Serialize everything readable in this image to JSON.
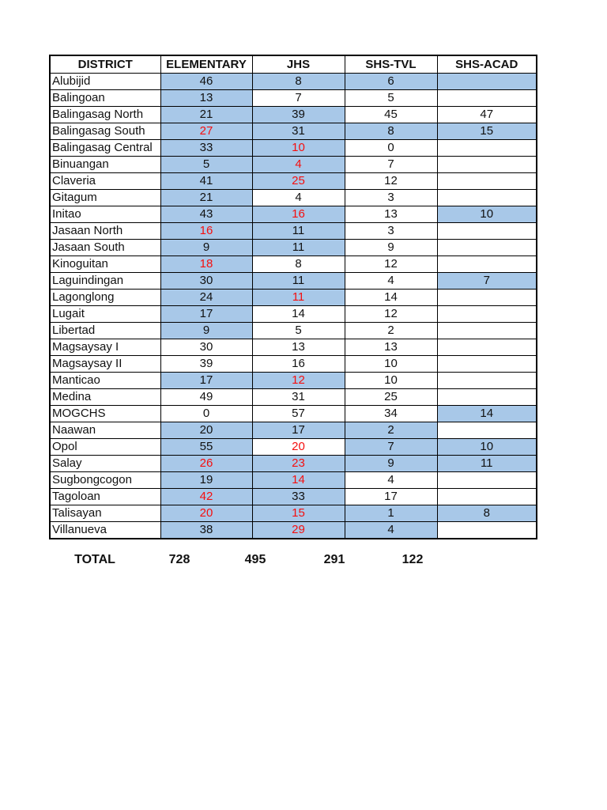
{
  "page": {
    "background": "#ffffff"
  },
  "colors": {
    "highlight_blue": "#A8C8E8",
    "alert_red": "#F50F0F",
    "border_black": "#000000"
  },
  "table": {
    "columns": [
      "DISTRICT",
      "ELEMENTARY",
      "JHS",
      "SHS-TVL",
      "SHS-ACAD"
    ],
    "rows": [
      {
        "district": "Alubijid",
        "values": [
          {
            "v": "46",
            "hl": true,
            "red": false
          },
          {
            "v": "8",
            "hl": true,
            "red": false
          },
          {
            "v": "6",
            "hl": true,
            "red": false
          },
          {
            "v": "",
            "hl": true,
            "red": false
          }
        ]
      },
      {
        "district": "Balingoan",
        "values": [
          {
            "v": "13",
            "hl": true,
            "red": false
          },
          {
            "v": "7",
            "hl": false,
            "red": false
          },
          {
            "v": "5",
            "hl": false,
            "red": false
          },
          {
            "v": "",
            "hl": false,
            "red": false
          }
        ]
      },
      {
        "district": "Balingasag North",
        "values": [
          {
            "v": "21",
            "hl": true,
            "red": false
          },
          {
            "v": "39",
            "hl": true,
            "red": false
          },
          {
            "v": "45",
            "hl": false,
            "red": false
          },
          {
            "v": "47",
            "hl": false,
            "red": false
          }
        ]
      },
      {
        "district": "Balingasag South",
        "values": [
          {
            "v": "27",
            "hl": true,
            "red": true
          },
          {
            "v": "31",
            "hl": true,
            "red": false
          },
          {
            "v": "8",
            "hl": true,
            "red": false
          },
          {
            "v": "15",
            "hl": true,
            "red": false
          }
        ]
      },
      {
        "district": "Balingasag Central",
        "values": [
          {
            "v": "33",
            "hl": true,
            "red": false
          },
          {
            "v": "10",
            "hl": true,
            "red": true
          },
          {
            "v": "0",
            "hl": false,
            "red": false
          },
          {
            "v": "",
            "hl": false,
            "red": false
          }
        ]
      },
      {
        "district": "Binuangan",
        "values": [
          {
            "v": "5",
            "hl": true,
            "red": false
          },
          {
            "v": "4",
            "hl": true,
            "red": true
          },
          {
            "v": "7",
            "hl": false,
            "red": false
          },
          {
            "v": "",
            "hl": false,
            "red": false
          }
        ]
      },
      {
        "district": "Claveria",
        "values": [
          {
            "v": "41",
            "hl": true,
            "red": false
          },
          {
            "v": "25",
            "hl": true,
            "red": true
          },
          {
            "v": "12",
            "hl": false,
            "red": false
          },
          {
            "v": "",
            "hl": false,
            "red": false
          }
        ]
      },
      {
        "district": "Gitagum",
        "values": [
          {
            "v": "21",
            "hl": true,
            "red": false
          },
          {
            "v": "4",
            "hl": false,
            "red": false
          },
          {
            "v": "3",
            "hl": false,
            "red": false
          },
          {
            "v": "",
            "hl": false,
            "red": false
          }
        ]
      },
      {
        "district": "Initao",
        "values": [
          {
            "v": "43",
            "hl": true,
            "red": false
          },
          {
            "v": "16",
            "hl": true,
            "red": true
          },
          {
            "v": "13",
            "hl": false,
            "red": false
          },
          {
            "v": "10",
            "hl": true,
            "red": false
          }
        ]
      },
      {
        "district": "Jasaan North",
        "values": [
          {
            "v": "16",
            "hl": true,
            "red": true
          },
          {
            "v": "11",
            "hl": true,
            "red": false
          },
          {
            "v": "3",
            "hl": false,
            "red": false
          },
          {
            "v": "",
            "hl": false,
            "red": false
          }
        ]
      },
      {
        "district": "Jasaan South",
        "values": [
          {
            "v": "9",
            "hl": true,
            "red": false
          },
          {
            "v": "11",
            "hl": true,
            "red": false
          },
          {
            "v": "9",
            "hl": false,
            "red": false
          },
          {
            "v": "",
            "hl": false,
            "red": false
          }
        ]
      },
      {
        "district": "Kinoguitan",
        "values": [
          {
            "v": "18",
            "hl": true,
            "red": true
          },
          {
            "v": "8",
            "hl": false,
            "red": false
          },
          {
            "v": "12",
            "hl": false,
            "red": false
          },
          {
            "v": "",
            "hl": false,
            "red": false
          }
        ]
      },
      {
        "district": "Laguindingan",
        "values": [
          {
            "v": "30",
            "hl": true,
            "red": false
          },
          {
            "v": "11",
            "hl": true,
            "red": false
          },
          {
            "v": "4",
            "hl": false,
            "red": false
          },
          {
            "v": "7",
            "hl": true,
            "red": false
          }
        ]
      },
      {
        "district": "Lagonglong",
        "values": [
          {
            "v": "24",
            "hl": true,
            "red": false
          },
          {
            "v": "11",
            "hl": true,
            "red": true
          },
          {
            "v": "14",
            "hl": false,
            "red": false
          },
          {
            "v": "",
            "hl": false,
            "red": false
          }
        ]
      },
      {
        "district": "Lugait",
        "values": [
          {
            "v": "17",
            "hl": true,
            "red": false
          },
          {
            "v": "14",
            "hl": false,
            "red": false
          },
          {
            "v": "12",
            "hl": false,
            "red": false
          },
          {
            "v": "",
            "hl": false,
            "red": false
          }
        ]
      },
      {
        "district": "Libertad",
        "values": [
          {
            "v": "9",
            "hl": true,
            "red": false
          },
          {
            "v": "5",
            "hl": false,
            "red": false
          },
          {
            "v": "2",
            "hl": false,
            "red": false
          },
          {
            "v": "",
            "hl": false,
            "red": false
          }
        ]
      },
      {
        "district": "Magsaysay I",
        "values": [
          {
            "v": "30",
            "hl": false,
            "red": false
          },
          {
            "v": "13",
            "hl": false,
            "red": false
          },
          {
            "v": "13",
            "hl": false,
            "red": false
          },
          {
            "v": "",
            "hl": false,
            "red": false
          }
        ]
      },
      {
        "district": "Magsaysay II",
        "values": [
          {
            "v": "39",
            "hl": false,
            "red": false
          },
          {
            "v": "16",
            "hl": false,
            "red": false
          },
          {
            "v": "10",
            "hl": false,
            "red": false
          },
          {
            "v": "",
            "hl": false,
            "red": false
          }
        ]
      },
      {
        "district": "Manticao",
        "values": [
          {
            "v": "17",
            "hl": true,
            "red": false
          },
          {
            "v": "12",
            "hl": true,
            "red": true
          },
          {
            "v": "10",
            "hl": false,
            "red": false
          },
          {
            "v": "",
            "hl": false,
            "red": false
          }
        ]
      },
      {
        "district": "Medina",
        "values": [
          {
            "v": "49",
            "hl": false,
            "red": false
          },
          {
            "v": "31",
            "hl": false,
            "red": false
          },
          {
            "v": "25",
            "hl": false,
            "red": false
          },
          {
            "v": "",
            "hl": false,
            "red": false
          }
        ]
      },
      {
        "district": "MOGCHS",
        "values": [
          {
            "v": "0",
            "hl": false,
            "red": false
          },
          {
            "v": "57",
            "hl": false,
            "red": false
          },
          {
            "v": "34",
            "hl": false,
            "red": false
          },
          {
            "v": "14",
            "hl": true,
            "red": false
          }
        ]
      },
      {
        "district": "Naawan",
        "values": [
          {
            "v": "20",
            "hl": true,
            "red": false
          },
          {
            "v": "17",
            "hl": true,
            "red": false
          },
          {
            "v": "2",
            "hl": true,
            "red": false
          },
          {
            "v": "",
            "hl": false,
            "red": false
          }
        ]
      },
      {
        "district": "Opol",
        "values": [
          {
            "v": "55",
            "hl": true,
            "red": false
          },
          {
            "v": "20",
            "hl": false,
            "red": true
          },
          {
            "v": "7",
            "hl": true,
            "red": false
          },
          {
            "v": "10",
            "hl": true,
            "red": false
          }
        ]
      },
      {
        "district": "Salay",
        "values": [
          {
            "v": "26",
            "hl": true,
            "red": true
          },
          {
            "v": "23",
            "hl": true,
            "red": true
          },
          {
            "v": "9",
            "hl": true,
            "red": false
          },
          {
            "v": "11",
            "hl": true,
            "red": false
          }
        ]
      },
      {
        "district": "Sugbongcogon",
        "values": [
          {
            "v": "19",
            "hl": true,
            "red": false
          },
          {
            "v": "14",
            "hl": true,
            "red": true
          },
          {
            "v": "4",
            "hl": false,
            "red": false
          },
          {
            "v": "",
            "hl": false,
            "red": false
          }
        ]
      },
      {
        "district": "Tagoloan",
        "values": [
          {
            "v": "42",
            "hl": true,
            "red": true
          },
          {
            "v": "33",
            "hl": true,
            "red": false
          },
          {
            "v": "17",
            "hl": false,
            "red": false
          },
          {
            "v": "",
            "hl": false,
            "red": false
          }
        ]
      },
      {
        "district": "Talisayan",
        "values": [
          {
            "v": "20",
            "hl": true,
            "red": true
          },
          {
            "v": "15",
            "hl": true,
            "red": true
          },
          {
            "v": "1",
            "hl": true,
            "red": false
          },
          {
            "v": "8",
            "hl": true,
            "red": false
          }
        ]
      },
      {
        "district": "Villanueva",
        "values": [
          {
            "v": "38",
            "hl": true,
            "red": false
          },
          {
            "v": "29",
            "hl": true,
            "red": true
          },
          {
            "v": "4",
            "hl": true,
            "red": false
          },
          {
            "v": "",
            "hl": false,
            "red": false
          }
        ]
      }
    ],
    "totals": {
      "label": "TOTAL",
      "values": [
        "728",
        "495",
        "291",
        "122"
      ]
    }
  }
}
